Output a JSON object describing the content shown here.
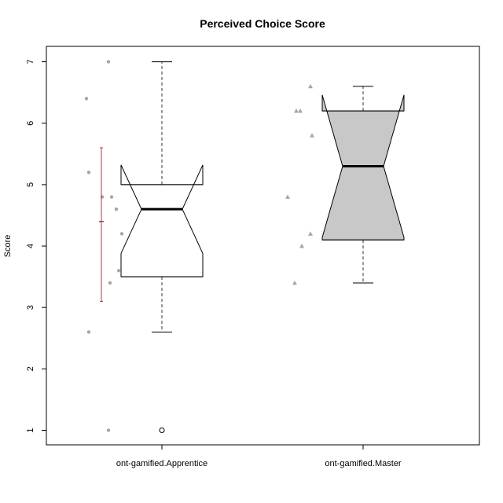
{
  "chart_data": {
    "type": "boxplot",
    "title": "Perceived Choice Score",
    "xlabel": "",
    "ylabel": "Score",
    "ylim": [
      1,
      7
    ],
    "yticks": [
      "1",
      "2",
      "3",
      "4",
      "5",
      "6",
      "7"
    ],
    "categories": [
      "ont-gamified.Apprentice",
      "ont-gamified.Master"
    ],
    "boxes": [
      {
        "category": "ont-gamified.Apprentice",
        "fill": "#ffffff",
        "whisker_low": 2.6,
        "q1": 3.5,
        "median": 4.6,
        "q3": 5.0,
        "whisker_high": 7.0,
        "notch_low": 3.88,
        "notch_high": 5.32,
        "outliers": [
          1.0
        ]
      },
      {
        "category": "ont-gamified.Master",
        "fill": "#c8c8c8",
        "whisker_low": 3.4,
        "q1": 4.1,
        "median": 5.3,
        "q3": 6.2,
        "whisker_high": 6.6,
        "notch_low": 4.14,
        "notch_high": 6.46,
        "outliers": []
      }
    ],
    "jitter_points": [
      {
        "category": "ont-gamified.Apprentice",
        "marker": "circle",
        "color": "#a6a6a6",
        "values": [
          6.4,
          7.0,
          5.2,
          4.8,
          4.8,
          4.6,
          4.2,
          3.6,
          3.4,
          2.6,
          1.0
        ]
      },
      {
        "category": "ont-gamified.Master",
        "marker": "triangle",
        "color": "#a6a6a6",
        "values": [
          6.6,
          6.2,
          6.2,
          5.8,
          4.8,
          4.2,
          4.0,
          3.4
        ]
      }
    ],
    "mean_sd": {
      "category": "ont-gamified.Apprentice",
      "color": "#d62728",
      "mean": 4.4,
      "low": 3.1,
      "high": 5.6
    }
  }
}
